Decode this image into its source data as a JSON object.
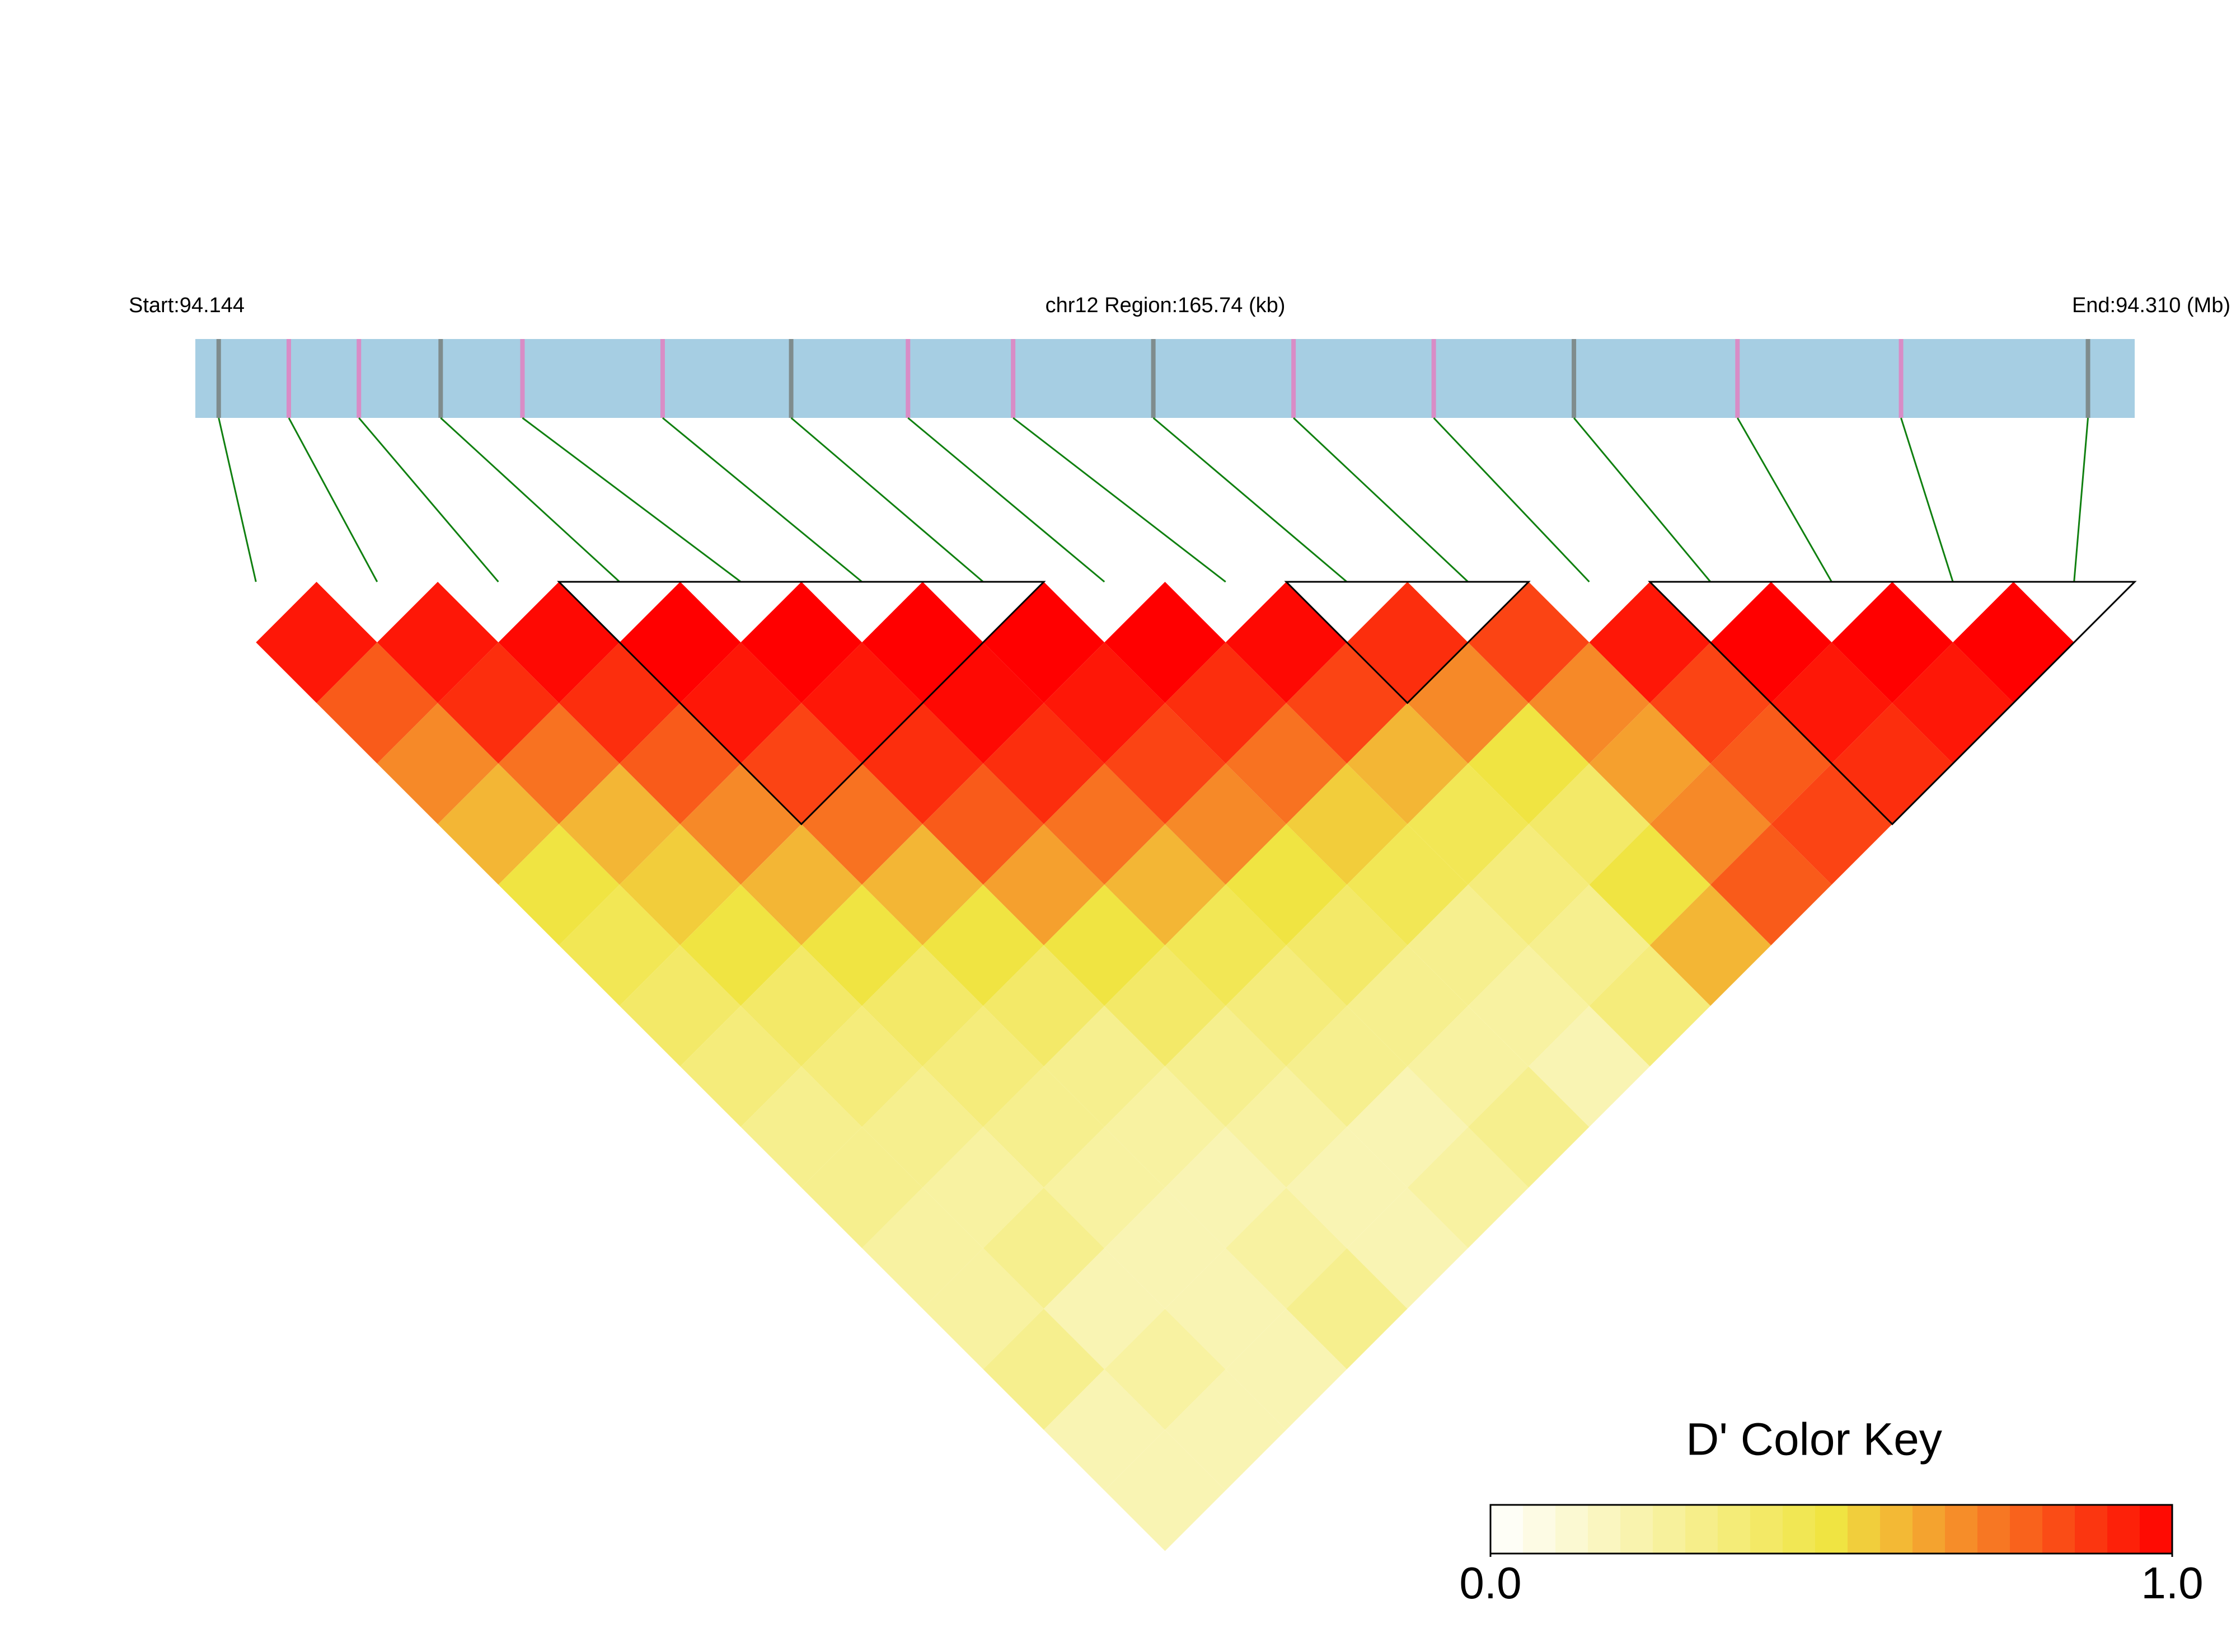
{
  "chart_data": {
    "type": "ld_heatmap",
    "start_label": "Start:94.144",
    "title": "chr12 Region:165.74 (kb)",
    "end_label": "End:94.310 (Mb)",
    "xlim": [
      94.144,
      94.31
    ],
    "positions": [
      94.146,
      94.152,
      94.158,
      94.165,
      94.172,
      94.184,
      94.195,
      94.205,
      94.214,
      94.226,
      94.238,
      94.25,
      94.262,
      94.276,
      94.29,
      94.306
    ],
    "matrix": [
      [
        0.95,
        0.8,
        0.7,
        0.6,
        0.5,
        0.45,
        0.4,
        0.35,
        0.3,
        0.3,
        0.25,
        0.25,
        0.3,
        0.2,
        0.2
      ],
      [
        0.95,
        0.9,
        0.75,
        0.6,
        0.55,
        0.5,
        0.4,
        0.35,
        0.3,
        0.25,
        0.3,
        0.2,
        0.25,
        0.2
      ],
      [
        0.98,
        0.9,
        0.8,
        0.7,
        0.6,
        0.5,
        0.4,
        0.35,
        0.3,
        0.25,
        0.2,
        0.2,
        0.2
      ],
      [
        1,
        0.95,
        0.85,
        0.75,
        0.6,
        0.5,
        0.4,
        0.3,
        0.25,
        0.2,
        0.25,
        0.3
      ],
      [
        1,
        0.95,
        0.9,
        0.8,
        0.65,
        0.5,
        0.4,
        0.3,
        0.25,
        0.2,
        0.2
      ],
      [
        1,
        0.98,
        0.9,
        0.75,
        0.6,
        0.45,
        0.35,
        0.3,
        0.2,
        0.25
      ],
      [
        1,
        0.95,
        0.85,
        0.7,
        0.5,
        0.4,
        0.3,
        0.25,
        0.3
      ],
      [
        1,
        0.9,
        0.75,
        0.55,
        0.45,
        0.3,
        0.25,
        0.2
      ],
      [
        0.98,
        0.85,
        0.6,
        0.45,
        0.35,
        0.3,
        0.35
      ],
      [
        0.9,
        0.7,
        0.5,
        0.4,
        0.5,
        0.6
      ],
      [
        0.85,
        0.7,
        0.65,
        0.7,
        0.8
      ],
      [
        0.95,
        0.85,
        0.8,
        0.85
      ],
      [
        1,
        0.95,
        0.9
      ],
      [
        1,
        0.95
      ],
      [
        1
      ]
    ],
    "blocks": [
      [
        3,
        6
      ],
      [
        9,
        10
      ],
      [
        12,
        15
      ]
    ],
    "key_title": "D' Color Key",
    "colors": [
      "#ffffff",
      "#f0e442",
      "#ff0000"
    ],
    "key_lim": [
      0,
      1
    ],
    "key_ticks": [
      {
        "value": 0,
        "label": "0.0"
      },
      {
        "value": 1,
        "label": "1.0"
      }
    ]
  }
}
